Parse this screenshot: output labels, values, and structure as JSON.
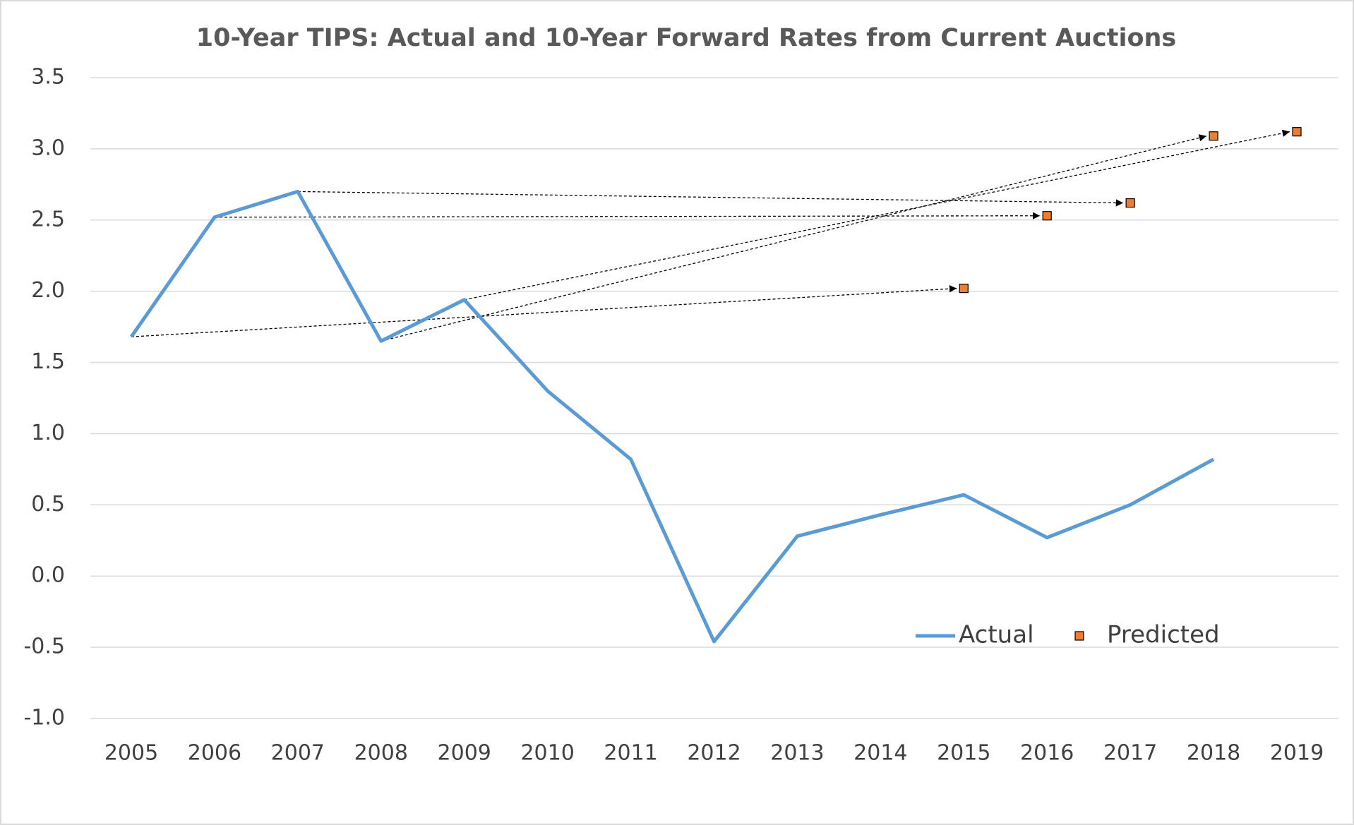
{
  "chart_data": {
    "type": "line",
    "title": "10-Year TIPS: Actual and 10-Year Forward Rates from Current Auctions",
    "categories": [
      "2005",
      "2006",
      "2007",
      "2008",
      "2009",
      "2010",
      "2011",
      "2012",
      "2013",
      "2014",
      "2015",
      "2016",
      "2017",
      "2018",
      "2019"
    ],
    "series": [
      {
        "name": "Actual",
        "color": "#5b9bd5",
        "values": [
          1.68,
          2.52,
          2.7,
          1.65,
          1.94,
          1.3,
          0.82,
          -0.46,
          0.28,
          0.43,
          0.57,
          0.27,
          0.5,
          0.82,
          null
        ]
      },
      {
        "name": "Predicted",
        "color": "#ed7d31",
        "values": [
          null,
          null,
          null,
          null,
          null,
          null,
          null,
          null,
          null,
          null,
          2.02,
          2.53,
          2.62,
          3.09,
          3.12
        ]
      }
    ],
    "ylim": [
      -1,
      3.5
    ],
    "yticks": [
      {
        "value": -1,
        "label": "-1.0"
      },
      -0.5,
      {
        "value": 0,
        "label": "0.0"
      },
      0.5,
      {
        "value": 1,
        "label": "1.0"
      },
      1.5,
      {
        "value": 2,
        "label": "2.0"
      },
      2.5,
      {
        "value": 3,
        "label": "3.0"
      },
      3.5
    ],
    "grid": true
  }
}
